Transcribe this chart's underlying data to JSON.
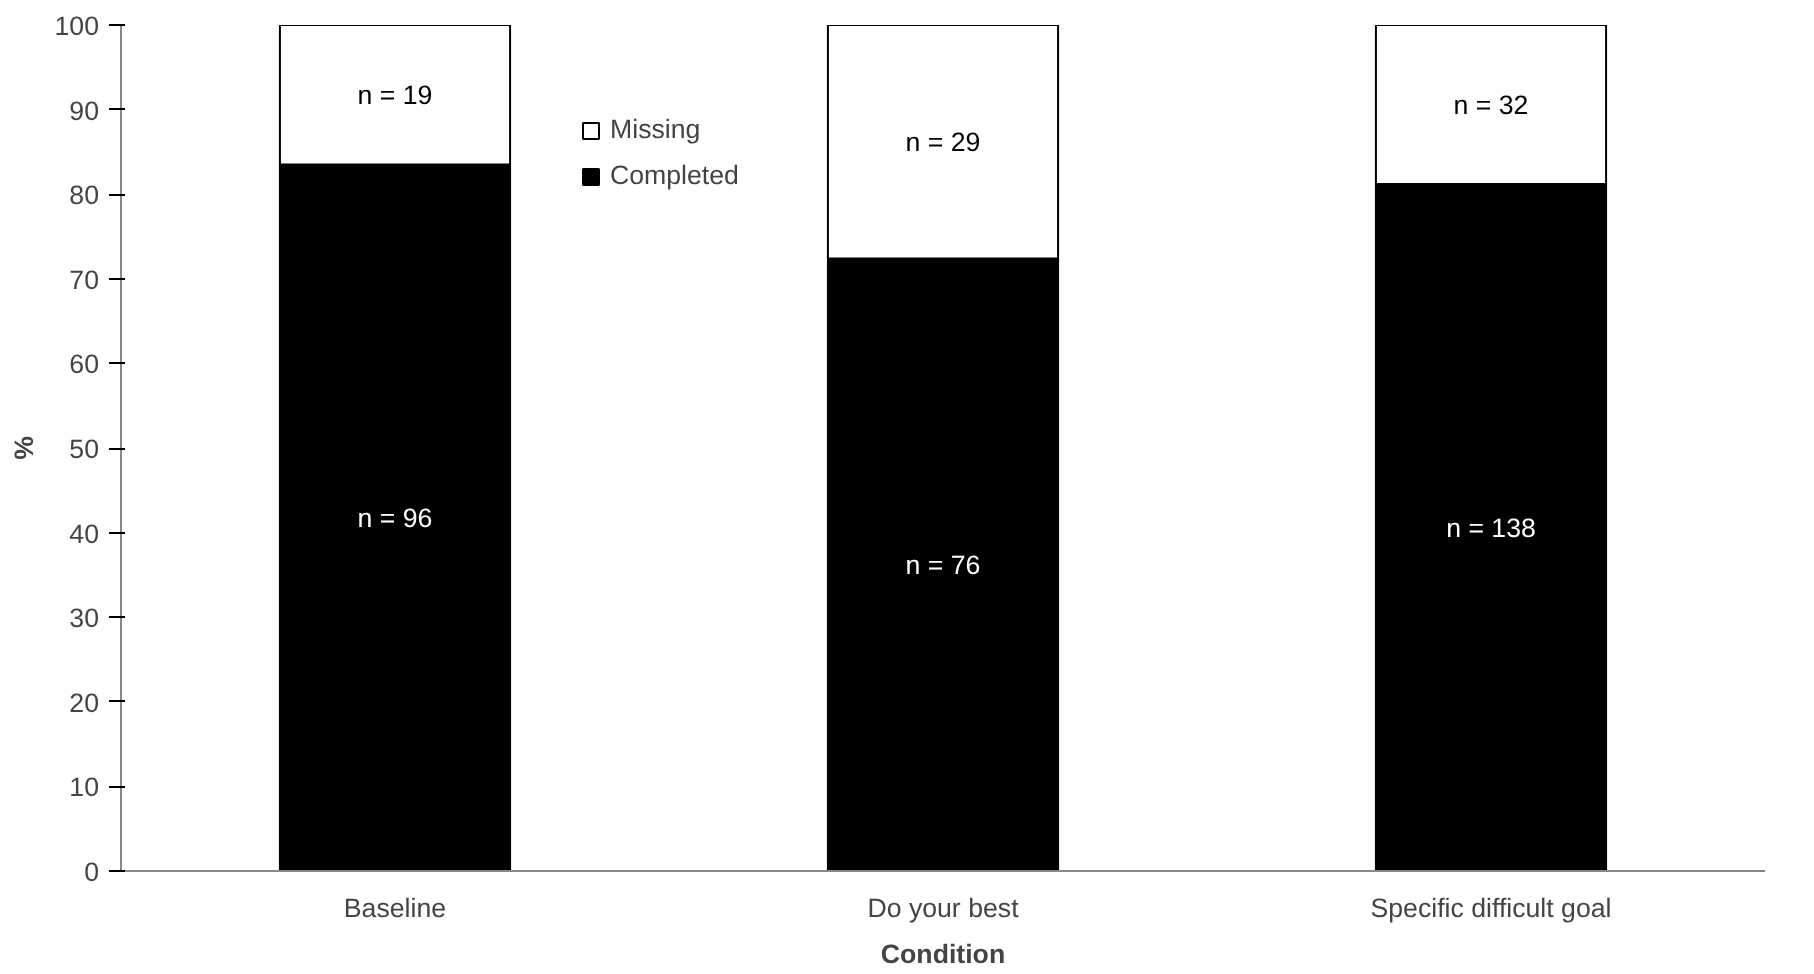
{
  "chart_data": {
    "type": "bar",
    "stacked": true,
    "xlabel": "Condition",
    "ylabel": "%",
    "categories": [
      "Baseline",
      "Do your best",
      "Specific difficult goal"
    ],
    "series": [
      {
        "name": "Completed",
        "color": "#000000",
        "values": [
          83.5,
          72.4,
          81.2
        ]
      },
      {
        "name": "Missing",
        "color": "#ffffff",
        "values": [
          16.5,
          27.6,
          18.8
        ]
      }
    ],
    "annotations": [
      "n = 96",
      "n = 76",
      "n = 138",
      "n = 19",
      "n = 29",
      "n = 32"
    ],
    "ylim": [
      0,
      100
    ],
    "yticks": [
      0,
      10,
      20,
      30,
      40,
      50,
      60,
      70,
      80,
      90,
      100
    ],
    "grid": false,
    "legend": "top"
  }
}
